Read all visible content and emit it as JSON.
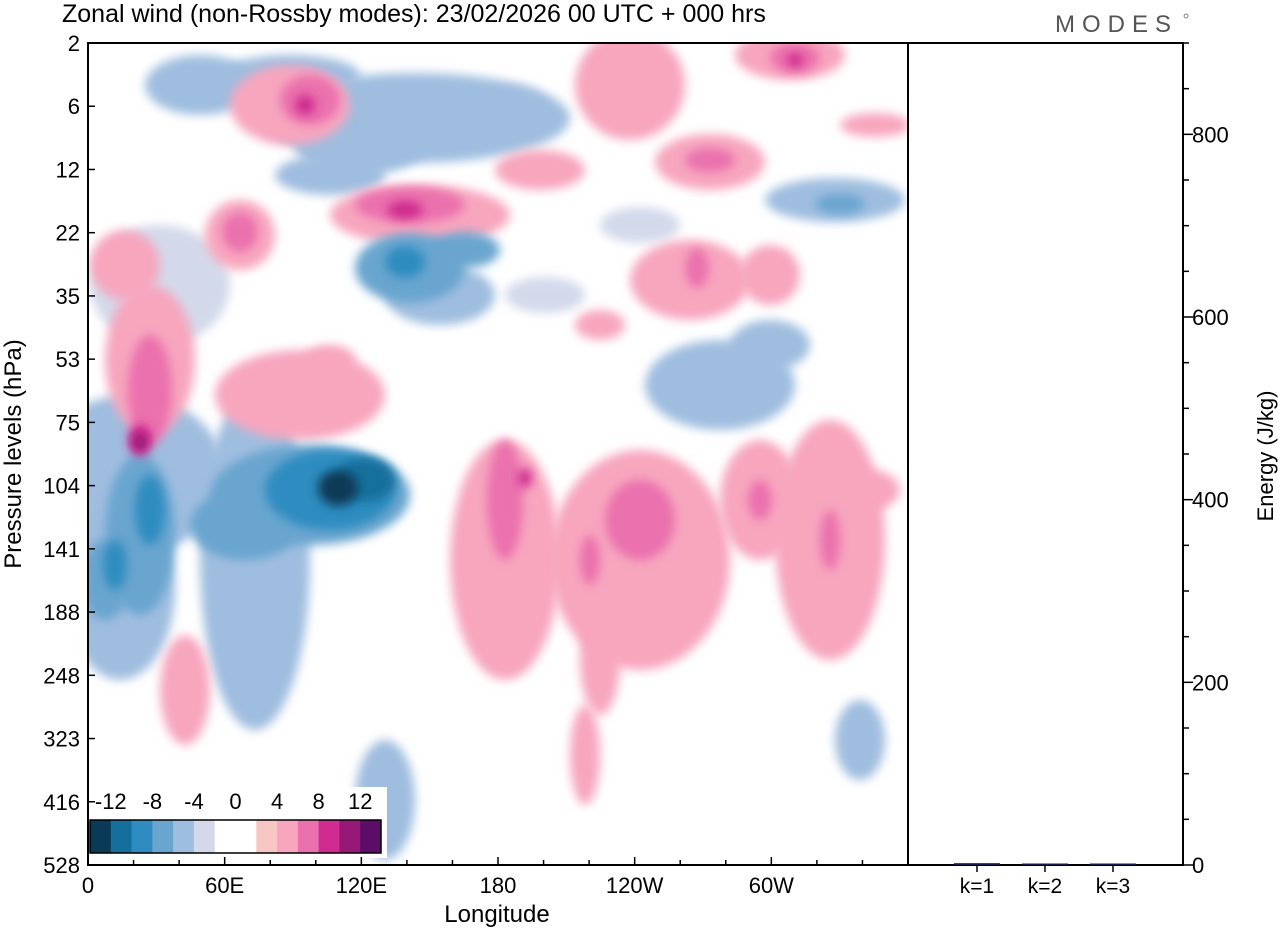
{
  "brand": "MODES",
  "title": "Zonal wind (non-Rossby modes):  23/02/2026  00 UTC  + 000 hrs",
  "chart_data": [
    {
      "type": "heatmap",
      "name": "zonal-wind-section",
      "title": "Zonal wind (non-Rossby modes):  23/02/2026  00 UTC  + 000 hrs",
      "xlabel": "Longitude",
      "ylabel": "Pressure levels (hPa)",
      "x_ticks": [
        "0",
        "60E",
        "120E",
        "180",
        "120W",
        "60W"
      ],
      "x_tick_values": [
        0,
        60,
        120,
        180,
        240,
        300
      ],
      "xlim": [
        0,
        360
      ],
      "y_ticks": [
        "2",
        "6",
        "12",
        "22",
        "35",
        "53",
        "75",
        "104",
        "141",
        "188",
        "248",
        "323",
        "416",
        "528"
      ],
      "y_scale": "categorical pressure levels (top = 2 hPa, bottom = 528 hPa)",
      "colorbar": {
        "labels": [
          "-12",
          "-8",
          "-4",
          "0",
          "4",
          "8",
          "12"
        ],
        "colors": [
          "#0b3a57",
          "#156f9c",
          "#2f8cc0",
          "#69a5cf",
          "#9fbddf",
          "#d3d9ea",
          "#ffffff",
          "#ffffff",
          "#f9c7c3",
          "#f7a6be",
          "#ea71ad",
          "#cf2b90",
          "#961977",
          "#5b0d67"
        ],
        "location": "bottom-left"
      },
      "features": [
        {
          "label": "-12",
          "lon": 110,
          "level": "104"
        },
        {
          "label": "-8",
          "lon": 15,
          "level": "141"
        },
        {
          "label": "-6",
          "lon": 140,
          "level": "35"
        },
        {
          "label": "10",
          "lon": 23,
          "level": "75"
        },
        {
          "label": "8",
          "lon": 100,
          "level": "6"
        },
        {
          "label": "8",
          "lon": 140,
          "level": "22"
        },
        {
          "label": "6",
          "lon": 195,
          "level": "104"
        },
        {
          "label": "6",
          "lon": 245,
          "level": "141"
        }
      ]
    },
    {
      "type": "bar",
      "name": "energy-bars",
      "categories": [
        "k=1",
        "k=2",
        "k=3"
      ],
      "values": [
        2,
        1,
        1
      ],
      "ylabel": "Energy (J/kg)",
      "ylim": [
        0,
        900
      ],
      "y_ticks": [
        0,
        200,
        400,
        600,
        800
      ],
      "bar_color": "#1a1a4a"
    }
  ]
}
